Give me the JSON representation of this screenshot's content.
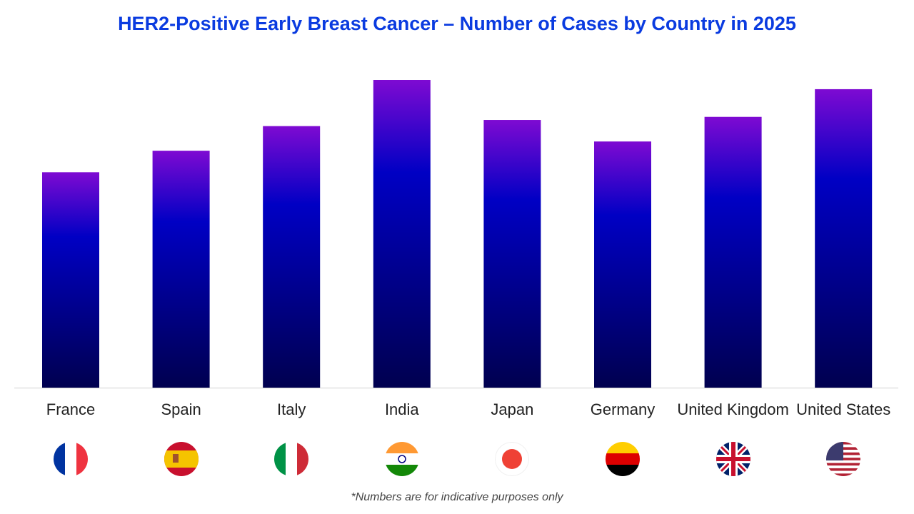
{
  "chart_data": {
    "type": "bar",
    "title": "HER2-Positive Early Breast Cancer – Number of Cases by Country in 2025",
    "categories": [
      "France",
      "Spain",
      "Italy",
      "India",
      "Japan",
      "Germany",
      "United Kingdom",
      "United States"
    ],
    "values": [
      70,
      77,
      85,
      100,
      87,
      80,
      88,
      97
    ],
    "value_axis_shown": false,
    "grid": false,
    "footnote": "*Numbers are for indicative purposes only",
    "colors": {
      "bar_top": "#7e0ad2",
      "bar_mid": "#0000c4",
      "bar_bottom": "#00004f",
      "title": "#0a3be0"
    },
    "flag_icons": [
      "flag-france",
      "flag-spain",
      "flag-italy",
      "flag-india",
      "flag-japan",
      "flag-germany",
      "flag-united-kingdom",
      "flag-united-states"
    ]
  }
}
